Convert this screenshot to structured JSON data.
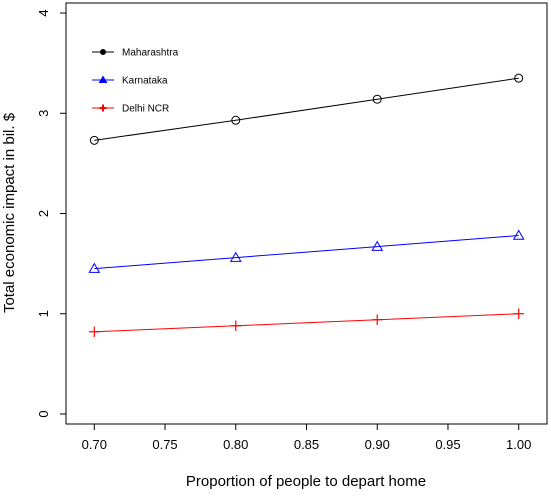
{
  "chart_data": {
    "type": "line",
    "title": "",
    "xlabel": "Proportion of people to depart home",
    "ylabel": "Total economic impact in bil. $",
    "x": [
      0.7,
      0.8,
      0.9,
      1.0
    ],
    "xlim": [
      0.68,
      1.02
    ],
    "ylim": [
      -0.1,
      4.1
    ],
    "x_ticks": [
      "0.70",
      "0.75",
      "0.80",
      "0.85",
      "0.90",
      "0.95",
      "1.00"
    ],
    "y_ticks": [
      "0",
      "1",
      "2",
      "3",
      "4"
    ],
    "grid": false,
    "legend_position": "top-left",
    "series": [
      {
        "name": "Maharashtra",
        "values": [
          2.73,
          2.93,
          3.14,
          3.35
        ],
        "color": "#000000",
        "marker": "circle"
      },
      {
        "name": "Karnataka",
        "values": [
          1.45,
          1.56,
          1.67,
          1.78
        ],
        "color": "#0000ff",
        "marker": "triangle"
      },
      {
        "name": "Delhi NCR",
        "values": [
          0.82,
          0.88,
          0.94,
          1.0
        ],
        "color": "#ff0000",
        "marker": "plus"
      }
    ]
  }
}
